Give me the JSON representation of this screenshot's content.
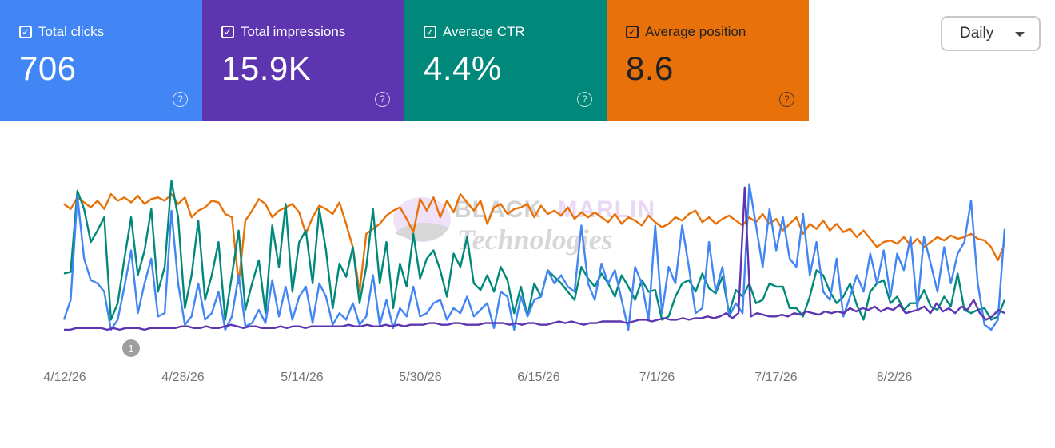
{
  "metrics": [
    {
      "label": "Total clicks",
      "value": "706",
      "bg": "#4285f4",
      "fg": "#ffffff"
    },
    {
      "label": "Total impressions",
      "value": "15.9K",
      "bg": "#5e35b1",
      "fg": "#ffffff"
    },
    {
      "label": "Average CTR",
      "value": "4.4%",
      "bg": "#00897b",
      "fg": "#ffffff"
    },
    {
      "label": "Average position",
      "value": "8.6",
      "bg": "#e8710a",
      "fg": "#202124"
    }
  ],
  "checkbox_icon": "check-icon",
  "help_icon": "help-circle-icon",
  "dropdown": {
    "selected": "Daily"
  },
  "watermark": {
    "line1a": "BLACK",
    "line1b": "MARLIN",
    "line2": "Technologies"
  },
  "annotation": {
    "label": "1"
  },
  "chart_data": {
    "type": "line",
    "x_tick_labels": [
      "4/12/26",
      "4/28/26",
      "5/14/26",
      "5/30/26",
      "6/15/26",
      "7/1/26",
      "7/17/26",
      "8/2/26"
    ],
    "x_range": [
      "4/12/26",
      "8/15/26"
    ],
    "y_axis_visible": false,
    "grid": false,
    "series": [
      {
        "name": "Average position",
        "color": "#e8710a",
        "values": [
          0.78,
          0.75,
          0.82,
          0.79,
          0.76,
          0.8,
          0.75,
          0.84,
          0.8,
          0.82,
          0.79,
          0.83,
          0.78,
          0.81,
          0.82,
          0.8,
          0.84,
          0.78,
          0.82,
          0.7,
          0.74,
          0.76,
          0.8,
          0.79,
          0.72,
          0.7,
          0.3,
          0.68,
          0.74,
          0.81,
          0.78,
          0.7,
          0.74,
          0.76,
          0.78,
          0.73,
          0.6,
          0.7,
          0.77,
          0.75,
          0.72,
          0.79,
          0.66,
          0.52,
          0.25,
          0.6,
          0.63,
          0.66,
          0.71,
          0.74,
          0.76,
          0.69,
          0.61,
          0.81,
          0.74,
          0.82,
          0.7,
          0.8,
          0.73,
          0.84,
          0.79,
          0.74,
          0.8,
          0.66,
          0.76,
          0.78,
          0.72,
          0.75,
          0.76,
          0.78,
          0.7,
          0.77,
          0.72,
          0.74,
          0.71,
          0.76,
          0.69,
          0.73,
          0.7,
          0.73,
          0.7,
          0.67,
          0.72,
          0.66,
          0.7,
          0.68,
          0.65,
          0.71,
          0.67,
          0.64,
          0.66,
          0.7,
          0.68,
          0.72,
          0.74,
          0.67,
          0.7,
          0.66,
          0.69,
          0.71,
          0.68,
          0.65,
          0.7,
          0.67,
          0.72,
          0.66,
          0.69,
          0.62,
          0.66,
          0.7,
          0.6,
          0.66,
          0.63,
          0.68,
          0.62,
          0.66,
          0.61,
          0.63,
          0.58,
          0.62,
          0.57,
          0.52,
          0.55,
          0.56,
          0.54,
          0.58,
          0.53,
          0.57,
          0.52,
          0.55,
          0.58,
          0.56,
          0.59,
          0.57,
          0.58,
          0.6,
          0.57,
          0.56,
          0.52,
          0.44,
          0.54
        ]
      },
      {
        "name": "Average CTR",
        "color": "#00897b",
        "values": [
          0.36,
          0.37,
          0.86,
          0.75,
          0.55,
          0.62,
          0.7,
          0.08,
          0.18,
          0.45,
          0.7,
          0.35,
          0.5,
          0.75,
          0.25,
          0.4,
          0.92,
          0.7,
          0.15,
          0.35,
          0.68,
          0.2,
          0.35,
          0.55,
          0.08,
          0.35,
          0.62,
          0.14,
          0.3,
          0.44,
          0.12,
          0.65,
          0.4,
          0.78,
          0.25,
          0.55,
          0.62,
          0.3,
          0.75,
          0.5,
          0.15,
          0.42,
          0.34,
          0.52,
          0.18,
          0.4,
          0.75,
          0.3,
          0.55,
          0.15,
          0.42,
          0.28,
          0.6,
          0.33,
          0.45,
          0.5,
          0.38,
          0.22,
          0.48,
          0.4,
          0.58,
          0.3,
          0.26,
          0.35,
          0.25,
          0.4,
          0.32,
          0.12,
          0.28,
          0.1,
          0.3,
          0.22,
          0.38,
          0.34,
          0.3,
          0.25,
          0.2,
          0.4,
          0.33,
          0.28,
          0.36,
          0.3,
          0.22,
          0.35,
          0.28,
          0.2,
          0.32,
          0.25,
          0.26,
          0.08,
          0.1,
          0.22,
          0.3,
          0.32,
          0.25,
          0.36,
          0.27,
          0.24,
          0.34,
          0.12,
          0.26,
          0.22,
          0.3,
          0.18,
          0.2,
          0.3,
          0.28,
          0.28,
          0.15,
          0.15,
          0.1,
          0.22,
          0.38,
          0.35,
          0.25,
          0.18,
          0.22,
          0.3,
          0.17,
          0.08,
          0.25,
          0.3,
          0.32,
          0.18,
          0.22,
          0.14,
          0.18,
          0.18,
          0.26,
          0.16,
          0.14,
          0.22,
          0.16,
          0.36,
          0.14,
          0.12,
          0.14,
          0.15,
          0.08,
          0.1,
          0.2
        ]
      },
      {
        "name": "Total clicks",
        "color": "#4285f4",
        "values": [
          0.08,
          0.2,
          0.83,
          0.45,
          0.32,
          0.3,
          0.25,
          0.02,
          0.08,
          0.28,
          0.5,
          0.12,
          0.3,
          0.45,
          0.1,
          0.12,
          0.74,
          0.3,
          0.05,
          0.1,
          0.3,
          0.08,
          0.12,
          0.25,
          0.02,
          0.1,
          0.35,
          0.04,
          0.06,
          0.14,
          0.06,
          0.32,
          0.1,
          0.28,
          0.08,
          0.22,
          0.28,
          0.06,
          0.3,
          0.22,
          0.05,
          0.12,
          0.08,
          0.18,
          0.05,
          0.1,
          0.35,
          0.05,
          0.2,
          0.03,
          0.15,
          0.1,
          0.28,
          0.1,
          0.12,
          0.18,
          0.2,
          0.08,
          0.15,
          0.12,
          0.22,
          0.1,
          0.14,
          0.18,
          0.03,
          0.25,
          0.22,
          0.02,
          0.22,
          0.1,
          0.2,
          0.22,
          0.38,
          0.3,
          0.35,
          0.28,
          0.25,
          0.65,
          0.3,
          0.2,
          0.42,
          0.3,
          0.38,
          0.2,
          0.02,
          0.4,
          0.3,
          0.08,
          0.65,
          0.12,
          0.4,
          0.3,
          0.65,
          0.4,
          0.12,
          0.15,
          0.55,
          0.25,
          0.4,
          0.1,
          0.18,
          0.12,
          0.9,
          0.65,
          0.4,
          0.75,
          0.5,
          0.7,
          0.45,
          0.4,
          0.72,
          0.35,
          0.55,
          0.25,
          0.2,
          0.45,
          0.1,
          0.22,
          0.35,
          0.25,
          0.48,
          0.3,
          0.5,
          0.22,
          0.48,
          0.38,
          0.58,
          0.15,
          0.58,
          0.42,
          0.25,
          0.52,
          0.3,
          0.48,
          0.55,
          0.8,
          0.3,
          0.05,
          0.02,
          0.08,
          0.63
        ]
      },
      {
        "name": "Total impressions",
        "color": "#5e35b1",
        "values": [
          0.02,
          0.02,
          0.03,
          0.03,
          0.03,
          0.03,
          0.03,
          0.02,
          0.03,
          0.02,
          0.03,
          0.03,
          0.03,
          0.02,
          0.03,
          0.03,
          0.03,
          0.03,
          0.03,
          0.04,
          0.04,
          0.03,
          0.03,
          0.04,
          0.03,
          0.03,
          0.04,
          0.05,
          0.04,
          0.03,
          0.04,
          0.04,
          0.03,
          0.03,
          0.03,
          0.04,
          0.03,
          0.04,
          0.04,
          0.03,
          0.04,
          0.04,
          0.04,
          0.04,
          0.04,
          0.04,
          0.05,
          0.04,
          0.04,
          0.05,
          0.04,
          0.04,
          0.05,
          0.04,
          0.05,
          0.04,
          0.05,
          0.05,
          0.05,
          0.06,
          0.06,
          0.05,
          0.05,
          0.06,
          0.06,
          0.05,
          0.05,
          0.05,
          0.06,
          0.06,
          0.06,
          0.06,
          0.05,
          0.06,
          0.05,
          0.06,
          0.06,
          0.05,
          0.05,
          0.06,
          0.07,
          0.06,
          0.07,
          0.06,
          0.05,
          0.06,
          0.06,
          0.07,
          0.07,
          0.07,
          0.07,
          0.06,
          0.07,
          0.08,
          0.08,
          0.07,
          0.08,
          0.09,
          0.08,
          0.08,
          0.09,
          0.08,
          0.09,
          0.09,
          0.1,
          0.09,
          0.1,
          0.12,
          0.09,
          0.12,
          0.88,
          0.1,
          0.12,
          0.11,
          0.1,
          0.1,
          0.11,
          0.1,
          0.12,
          0.11,
          0.13,
          0.12,
          0.11,
          0.13,
          0.12,
          0.13,
          0.12,
          0.15,
          0.13,
          0.15,
          0.14,
          0.16,
          0.13,
          0.15,
          0.14,
          0.17,
          0.12,
          0.13,
          0.14,
          0.16,
          0.12,
          0.18,
          0.13,
          0.15,
          0.12,
          0.16,
          0.14,
          0.2,
          0.12,
          0.08,
          0.1,
          0.14,
          0.12
        ]
      }
    ]
  }
}
